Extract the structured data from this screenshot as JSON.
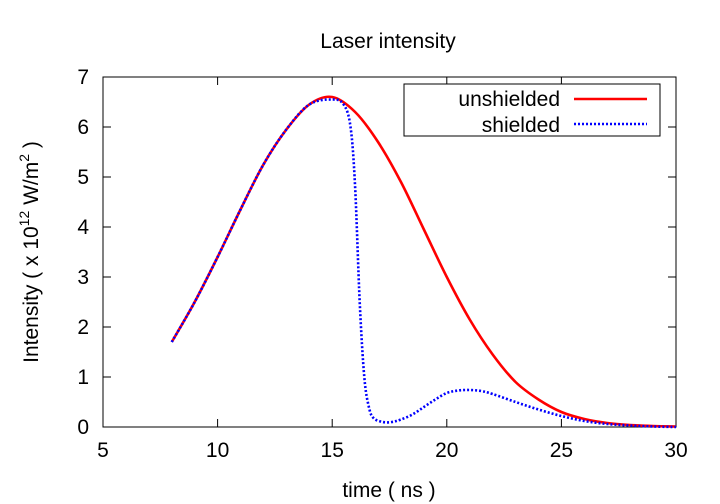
{
  "chart_data": {
    "type": "line",
    "title": "Laser intensity",
    "xlabel": "time ( ns )",
    "ylabel": {
      "prefix": "Intensity ( x 10",
      "exp1": "12",
      "mid": " W/m",
      "exp2": "2",
      "suffix": " )"
    },
    "xlim": [
      5,
      30
    ],
    "ylim": [
      0,
      7
    ],
    "xticks": [
      5,
      10,
      15,
      20,
      25,
      30
    ],
    "yticks": [
      0,
      1,
      2,
      3,
      4,
      5,
      6,
      7
    ],
    "grid": false,
    "legend_position": "top-right",
    "series": [
      {
        "name": "unshielded",
        "color": "#ff0000",
        "style": "solid",
        "x": [
          8,
          9,
          10,
          11,
          12,
          13,
          14,
          15,
          16,
          17,
          18,
          19,
          20,
          21,
          22,
          23,
          24,
          25,
          26,
          27,
          28,
          29,
          30
        ],
        "y": [
          1.7,
          2.5,
          3.4,
          4.35,
          5.25,
          5.95,
          6.45,
          6.6,
          6.3,
          5.7,
          4.9,
          3.95,
          3.0,
          2.15,
          1.45,
          0.9,
          0.55,
          0.3,
          0.16,
          0.08,
          0.04,
          0.02,
          0.01
        ]
      },
      {
        "name": "shielded",
        "color": "#0000ff",
        "style": "dotted",
        "x": [
          8,
          9,
          10,
          11,
          12,
          13,
          14,
          15,
          15.5,
          15.8,
          16.0,
          16.2,
          16.4,
          16.6,
          16.8,
          17.2,
          17.6,
          18,
          18.5,
          19,
          19.5,
          20,
          20.5,
          21,
          21.5,
          22,
          23,
          24,
          25,
          26,
          27,
          28,
          29,
          30
        ],
        "y": [
          1.7,
          2.5,
          3.4,
          4.35,
          5.25,
          5.95,
          6.45,
          6.55,
          6.45,
          6.0,
          4.8,
          2.5,
          1.0,
          0.4,
          0.18,
          0.1,
          0.1,
          0.15,
          0.25,
          0.4,
          0.55,
          0.68,
          0.73,
          0.74,
          0.72,
          0.66,
          0.5,
          0.35,
          0.22,
          0.12,
          0.06,
          0.03,
          0.01,
          0.0
        ]
      }
    ]
  }
}
